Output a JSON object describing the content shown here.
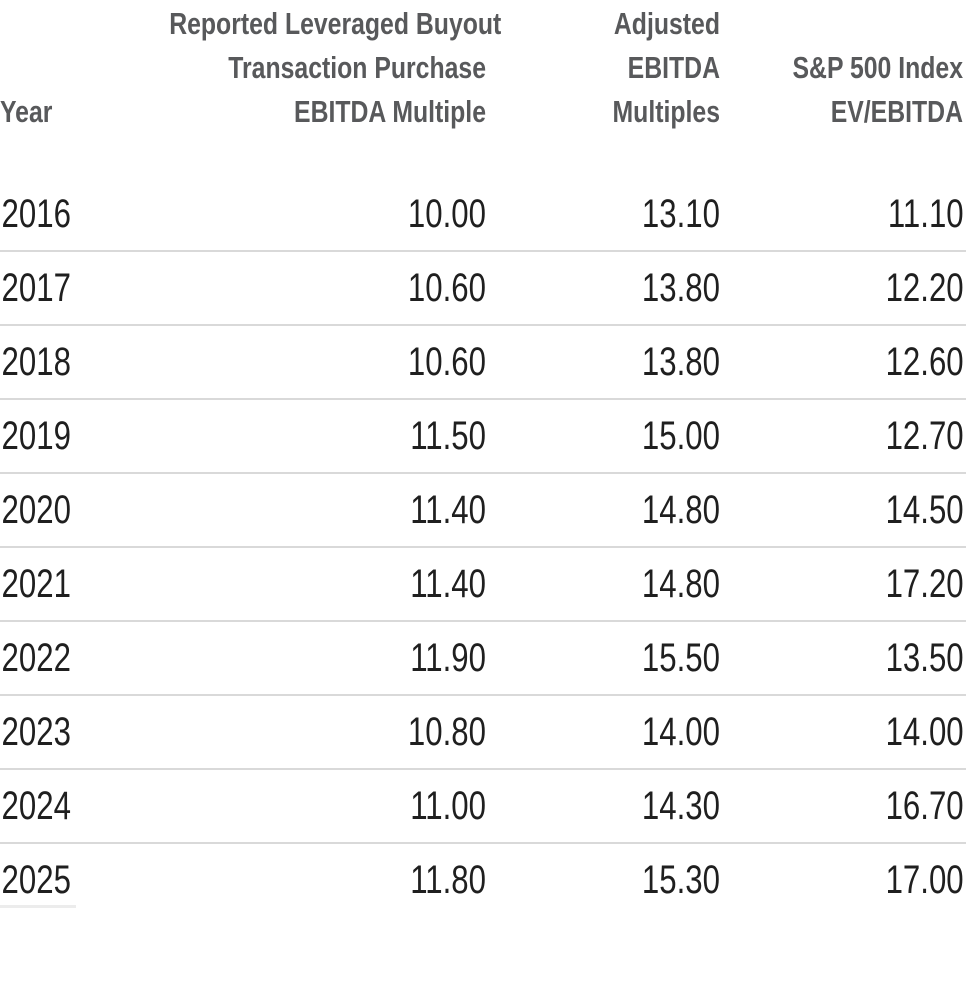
{
  "table": {
    "header": {
      "year": "Year",
      "col1_line1": "Reported Leveraged Buyout",
      "col1_line2": "Transaction Purchase",
      "col1_line3": "EBITDA Multiple",
      "col2_line1": "Adjusted",
      "col2_line2": "EBITDA",
      "col2_line3": "Multiples",
      "col3_line1": "S&P 500 Index",
      "col3_line2": "EV/EBITDA"
    },
    "rows": [
      {
        "year": "2016",
        "reported_lbo": "10.00",
        "adjusted": "13.10",
        "sp500": "11.10"
      },
      {
        "year": "2017",
        "reported_lbo": "10.60",
        "adjusted": "13.80",
        "sp500": "12.20"
      },
      {
        "year": "2018",
        "reported_lbo": "10.60",
        "adjusted": "13.80",
        "sp500": "12.60"
      },
      {
        "year": "2019",
        "reported_lbo": "11.50",
        "adjusted": "15.00",
        "sp500": "12.70"
      },
      {
        "year": "2020",
        "reported_lbo": "11.40",
        "adjusted": "14.80",
        "sp500": "14.50"
      },
      {
        "year": "2021",
        "reported_lbo": "11.40",
        "adjusted": "14.80",
        "sp500": "17.20"
      },
      {
        "year": "2022",
        "reported_lbo": "11.90",
        "adjusted": "15.50",
        "sp500": "13.50"
      },
      {
        "year": "2023",
        "reported_lbo": "10.80",
        "adjusted": "14.00",
        "sp500": "14.00"
      },
      {
        "year": "2024",
        "reported_lbo": "11.00",
        "adjusted": "14.30",
        "sp500": "16.70"
      },
      {
        "year": "2025",
        "reported_lbo": "11.80",
        "adjusted": "15.30",
        "sp500": "17.00"
      }
    ]
  },
  "colors": {
    "header_text": "#58595b",
    "data_text": "#1f1f1f",
    "separator": "#d9d9d9"
  },
  "chart_data": {
    "type": "table",
    "title": "",
    "columns": [
      "Year",
      "Reported Leveraged Buyout Transaction Purchase EBITDA Multiple",
      "Adjusted EBITDA Multiples",
      "S&P 500 Index EV/EBITDA"
    ],
    "rows": [
      [
        2016,
        10.0,
        13.1,
        11.1
      ],
      [
        2017,
        10.6,
        13.8,
        12.2
      ],
      [
        2018,
        10.6,
        13.8,
        12.6
      ],
      [
        2019,
        11.5,
        15.0,
        12.7
      ],
      [
        2020,
        11.4,
        14.8,
        14.5
      ],
      [
        2021,
        11.4,
        14.8,
        17.2
      ],
      [
        2022,
        11.9,
        15.5,
        13.5
      ],
      [
        2023,
        10.8,
        14.0,
        14.0
      ],
      [
        2024,
        11.0,
        14.3,
        16.7
      ],
      [
        2025,
        11.8,
        15.3,
        17.0
      ]
    ]
  }
}
